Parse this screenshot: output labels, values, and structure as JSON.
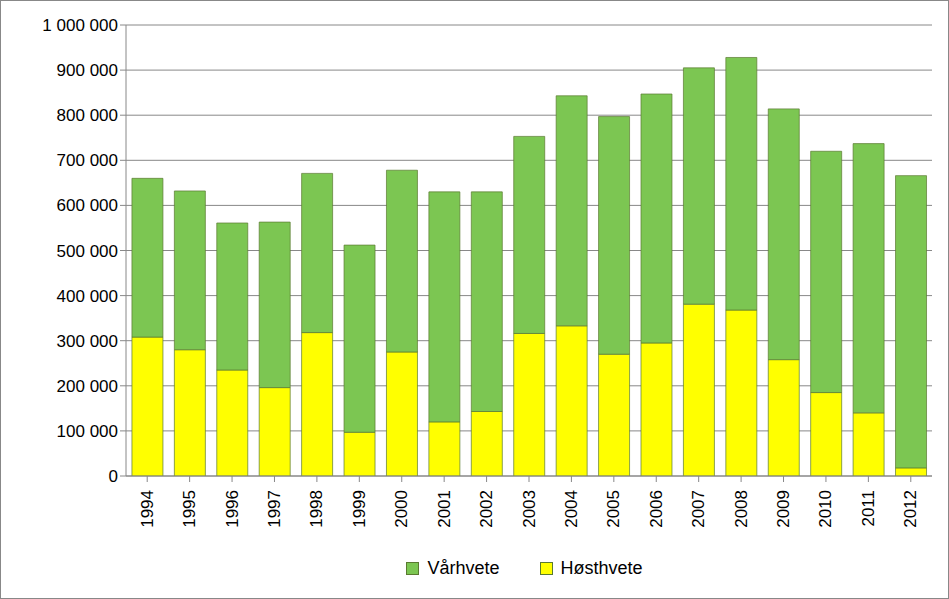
{
  "chart_data": {
    "type": "bar",
    "stacked": true,
    "grid": true,
    "legend": "bottom",
    "categories": [
      "1994",
      "1995",
      "1996",
      "1997",
      "1998",
      "1999",
      "2000",
      "2001",
      "2002",
      "2003",
      "2004",
      "2005",
      "2006",
      "2007",
      "2008",
      "2009",
      "2010",
      "2011",
      "2012"
    ],
    "series": [
      {
        "name": "Høsthvete",
        "color": "#ffff00",
        "values": [
          308000,
          280000,
          235000,
          196000,
          318000,
          97000,
          275000,
          120000,
          143000,
          316000,
          333000,
          270000,
          295000,
          381000,
          368000,
          258000,
          185000,
          140000,
          18000
        ]
      },
      {
        "name": "Vårhvete",
        "color": "#7cc652",
        "values": [
          352000,
          352000,
          326000,
          367000,
          353000,
          415000,
          403000,
          510000,
          487000,
          437000,
          510000,
          527000,
          552000,
          524000,
          560000,
          556000,
          535000,
          597000,
          648000
        ]
      }
    ],
    "ylim": [
      0,
      1000000
    ],
    "yticks": [
      0,
      {
        "value": 100000,
        "label": "100 000"
      },
      {
        "value": 200000,
        "label": "200 000"
      },
      {
        "value": 300000,
        "label": "300 000"
      },
      {
        "value": 400000,
        "label": "400 000"
      },
      {
        "value": 500000,
        "label": "500 000"
      },
      {
        "value": 600000,
        "label": "600 000"
      },
      {
        "value": 700000,
        "label": "700 000"
      },
      {
        "value": 800000,
        "label": "800 000"
      },
      {
        "value": 900000,
        "label": "900 000"
      },
      {
        "value": 1000000,
        "label": "1 000 000"
      }
    ]
  }
}
